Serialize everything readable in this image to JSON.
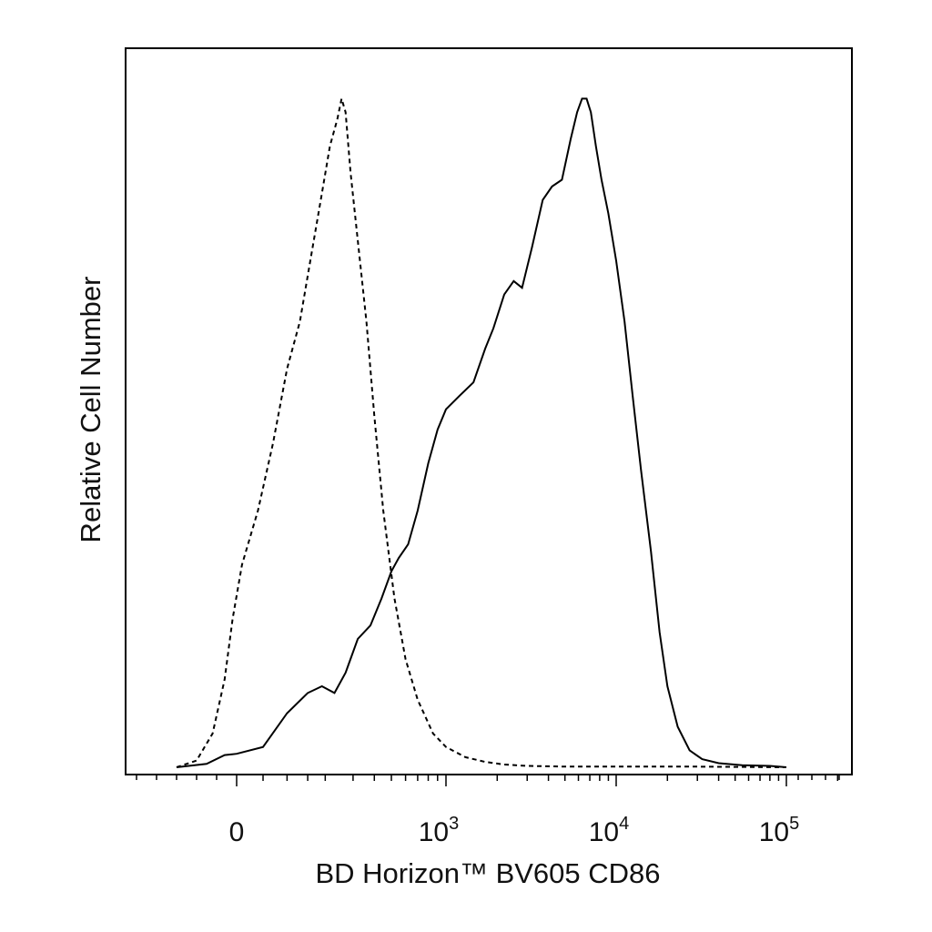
{
  "chart_data": {
    "type": "line",
    "title": "",
    "xlabel": "BD Horizon™ BV605 CD86",
    "ylabel": "Relative Cell Number",
    "x_scale": "biexponential",
    "xlim": [
      -300,
      200000
    ],
    "ylim": [
      0,
      100
    ],
    "x_ticks": [
      {
        "value": 0,
        "base": "0",
        "exp": ""
      },
      {
        "value": 1000,
        "base": "10",
        "exp": "3"
      },
      {
        "value": 10000,
        "base": "10",
        "exp": "4"
      },
      {
        "value": 100000,
        "base": "10",
        "exp": "5"
      }
    ],
    "grid": false,
    "legend": "none",
    "series": [
      {
        "style": "dashed",
        "x": [
          -300,
          -200,
          -120,
          -60,
          -20,
          10,
          40,
          70,
          100,
          130,
          160,
          190,
          215,
          240,
          255,
          270,
          290,
          320,
          360,
          400,
          450,
          520,
          600,
          700,
          850,
          1000,
          1300,
          1700,
          2200,
          3000,
          5000,
          10000,
          30000,
          100000
        ],
        "y": [
          0,
          1,
          5,
          13,
          22,
          30,
          38,
          48,
          59,
          66,
          76,
          85,
          92,
          96,
          99,
          97,
          88,
          78,
          66,
          52,
          38,
          25,
          16,
          10,
          5,
          3,
          1.5,
          0.8,
          0.4,
          0.2,
          0.1,
          0.1,
          0.1,
          0
        ]
      },
      {
        "style": "solid",
        "x": [
          -300,
          -150,
          -60,
          0,
          50,
          100,
          150,
          190,
          230,
          270,
          320,
          380,
          440,
          500,
          550,
          620,
          700,
          800,
          900,
          1000,
          1200,
          1450,
          1700,
          1900,
          2200,
          2500,
          2800,
          3200,
          3700,
          4200,
          4800,
          5400,
          5900,
          6300,
          6700,
          7100,
          7600,
          8200,
          9000,
          10000,
          11200,
          12500,
          14000,
          16000,
          18000,
          20000,
          23000,
          27000,
          32000,
          40000,
          55000,
          80000,
          100000
        ],
        "y": [
          0,
          0.5,
          1.8,
          2,
          3,
          8,
          11,
          12,
          11,
          14,
          19,
          21,
          25,
          29,
          31,
          33,
          38,
          45,
          50,
          53,
          55,
          57,
          62,
          65,
          70,
          72,
          71,
          77,
          84,
          86,
          87,
          93,
          97,
          99,
          99,
          97,
          92,
          87,
          82,
          75,
          66,
          55,
          44,
          32,
          20,
          12,
          6,
          2.5,
          1.2,
          0.6,
          0.3,
          0.2,
          0
        ]
      }
    ]
  }
}
